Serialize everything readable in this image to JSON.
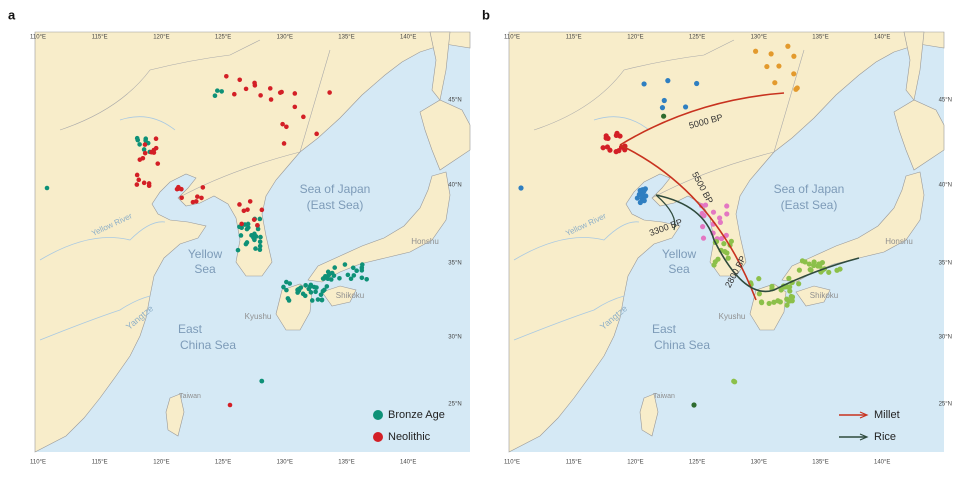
{
  "panels": [
    {
      "label": "a",
      "legend": [
        {
          "name": "Bronze Age",
          "color": "#0e9177"
        },
        {
          "name": "Neolithic",
          "color": "#d31f26"
        }
      ]
    },
    {
      "label": "b",
      "legend": [
        {
          "name": "Millet",
          "color": "#c8321f"
        },
        {
          "name": "Rice",
          "color": "#2f4a3c"
        }
      ],
      "routes": [
        "5000 BP",
        "5500 BP",
        "3300 BP",
        "2800 BP"
      ]
    }
  ],
  "longitude_labels": [
    "110°E",
    "115°E",
    "120°E",
    "125°E",
    "130°E",
    "135°E",
    "140°E"
  ],
  "latitude_labels": [
    "45°N",
    "40°N",
    "35°N",
    "30°N",
    "25°N"
  ],
  "places": [
    "Sea of Japan",
    "(East Sea)",
    "Yellow",
    "Sea",
    "East",
    "China Sea",
    "Yellow River",
    "Yangtze",
    "Honshu",
    "Shikoku",
    "Kyushu",
    "Taiwan"
  ]
}
